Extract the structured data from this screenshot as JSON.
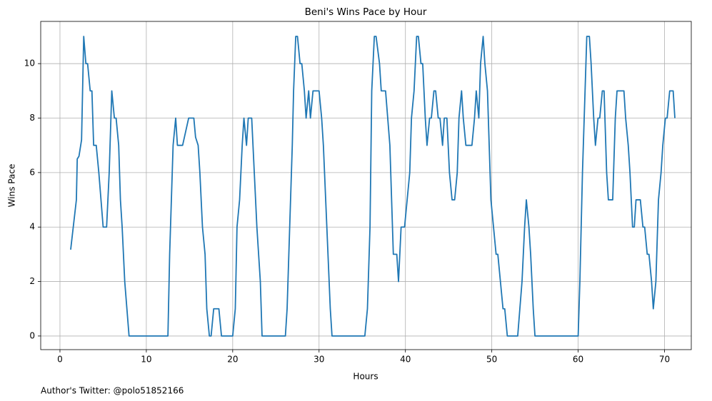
{
  "chart_data": {
    "type": "line",
    "title": "Beni's Wins Pace by Hour",
    "x_label": "Hours",
    "y_label": "Wins Pace",
    "footnote": "Author's Twitter: @polo51852166",
    "color": "#1f77b4",
    "grid": true,
    "xlim": [
      -2.23,
      73.1
    ],
    "ylim": [
      -0.5,
      11.55
    ],
    "xticks": [
      0,
      10,
      20,
      30,
      40,
      50,
      60,
      70
    ],
    "yticks": [
      0,
      2,
      4,
      6,
      8,
      10
    ],
    "x": [
      1.24,
      1.9,
      2.0,
      2.2,
      2.5,
      2.75,
      3.0,
      3.2,
      3.5,
      3.7,
      3.9,
      4.2,
      4.5,
      5.0,
      5.4,
      5.7,
      6.0,
      6.3,
      6.5,
      6.8,
      7.0,
      7.2,
      7.5,
      8.0,
      12.5,
      12.7,
      13.1,
      13.4,
      13.6,
      14.2,
      14.9,
      15.5,
      15.7,
      16.0,
      16.2,
      16.5,
      16.8,
      17.0,
      17.3,
      17.5,
      17.8,
      18.4,
      18.7,
      20.0,
      20.3,
      20.5,
      20.8,
      21.1,
      21.3,
      21.6,
      21.8,
      22.2,
      22.5,
      22.8,
      23.2,
      23.4,
      26.1,
      26.3,
      26.6,
      26.9,
      27.05,
      27.3,
      27.5,
      27.8,
      28.0,
      28.3,
      28.5,
      28.8,
      29.0,
      29.3,
      30.0,
      30.3,
      30.5,
      30.9,
      31.3,
      31.5,
      35.3,
      35.6,
      35.9,
      36.1,
      36.4,
      36.6,
      37.0,
      37.2,
      37.7,
      38.2,
      38.6,
      39.0,
      39.2,
      39.5,
      39.9,
      40.5,
      40.7,
      41.0,
      41.3,
      41.5,
      41.8,
      42.0,
      42.3,
      42.5,
      42.8,
      43.0,
      43.3,
      43.5,
      43.8,
      44.0,
      44.3,
      44.5,
      44.8,
      45.1,
      45.4,
      45.7,
      46.0,
      46.2,
      46.5,
      46.7,
      47.0,
      47.7,
      48.0,
      48.2,
      48.5,
      48.7,
      49.0,
      49.2,
      49.5,
      49.7,
      49.9,
      50.2,
      50.5,
      50.7,
      51.0,
      51.3,
      51.5,
      51.8,
      53.0,
      53.5,
      53.8,
      54.0,
      54.3,
      54.5,
      54.8,
      55.0,
      60.0,
      60.2,
      60.5,
      60.8,
      61.0,
      61.3,
      61.5,
      61.8,
      62.0,
      62.3,
      62.5,
      62.8,
      63.0,
      63.3,
      63.5,
      64.0,
      64.3,
      64.5,
      65.3,
      65.5,
      65.8,
      66.0,
      66.3,
      66.5,
      66.7,
      67.2,
      67.5,
      67.7,
      68.0,
      68.2,
      68.5,
      68.7,
      69.0,
      69.3,
      69.6,
      69.8,
      70.1,
      70.3,
      70.6,
      71.0,
      71.2
    ],
    "values": [
      3.17,
      5,
      6.5,
      6.6,
      7.2,
      11,
      10,
      10,
      9,
      9,
      7,
      7,
      6,
      4,
      4,
      6,
      9,
      8,
      8,
      7,
      5,
      4,
      2,
      0,
      0,
      3,
      7,
      8,
      7,
      7,
      8,
      8,
      7.3,
      7,
      6,
      4,
      3,
      1,
      0,
      0,
      1,
      1,
      0,
      0,
      1,
      4,
      5,
      7,
      8,
      7,
      8,
      8,
      6,
      4,
      2,
      0,
      0,
      1,
      4,
      7,
      9,
      11,
      11,
      10,
      10,
      9,
      8,
      9,
      8,
      9,
      9,
      8,
      7,
      4,
      1,
      0,
      0,
      1,
      4,
      9,
      11,
      11,
      10,
      9,
      9,
      7,
      3,
      3,
      2,
      4,
      4,
      6,
      8,
      9,
      11,
      11,
      10,
      10,
      8,
      7,
      8,
      8,
      9,
      9,
      8,
      8,
      7,
      8,
      8,
      6,
      5,
      5,
      6,
      8,
      9,
      8,
      7,
      7,
      8,
      9,
      8,
      10,
      11,
      10,
      9,
      7,
      5,
      4,
      3,
      3,
      2,
      1,
      1,
      0,
      0,
      2,
      4,
      5,
      4,
      3,
      1,
      0,
      0,
      2,
      6,
      9,
      11,
      11,
      10,
      8,
      7,
      8,
      8,
      9,
      9,
      6,
      5,
      5,
      8,
      9,
      9,
      8,
      7,
      6,
      4,
      4,
      5,
      5,
      4,
      4,
      3,
      3,
      2,
      1,
      2,
      5,
      6,
      7,
      8,
      8,
      9,
      9,
      8
    ]
  }
}
